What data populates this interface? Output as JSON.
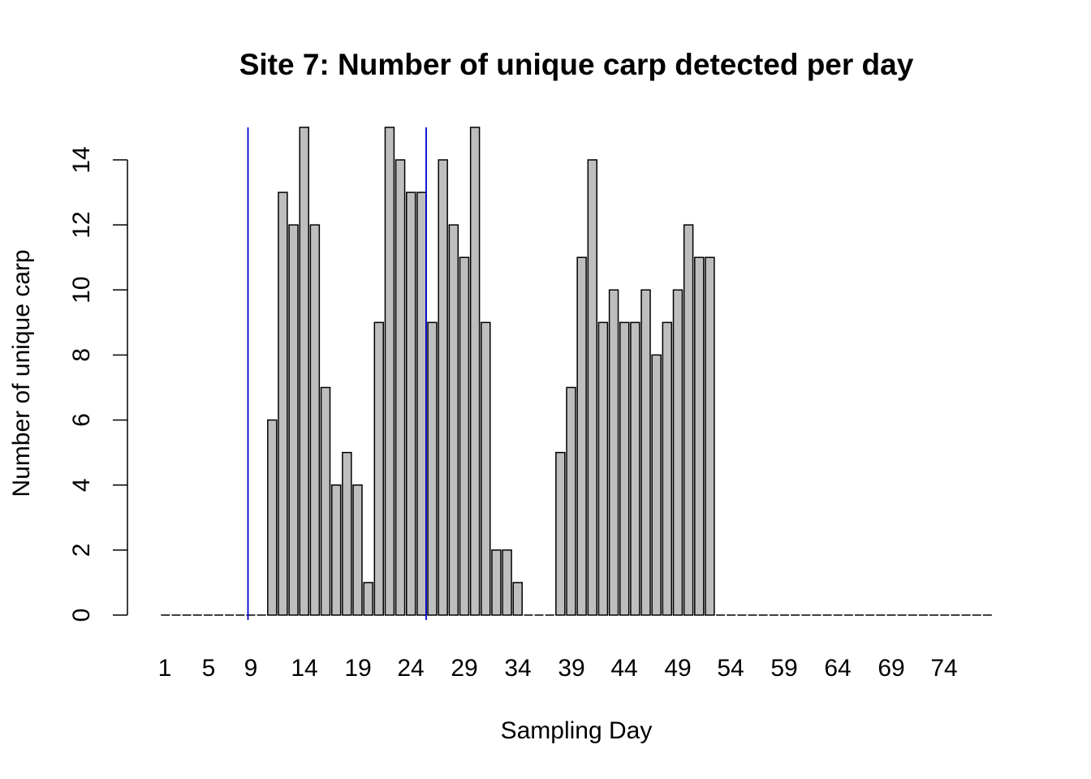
{
  "chart_data": {
    "type": "bar",
    "title": "Site 7: Number of unique carp detected per day",
    "xlabel": "Sampling Day",
    "ylabel": "Number of unique carp",
    "ylim": [
      0,
      15
    ],
    "y_ticks": [
      "0",
      "2",
      "4",
      "6",
      "8",
      "10",
      "12",
      "14"
    ],
    "x_tick_labels": [
      "1",
      "5",
      "9",
      "14",
      "19",
      "24",
      "29",
      "34",
      "39",
      "44",
      "49",
      "54",
      "59",
      "64",
      "69",
      "74"
    ],
    "categories": [
      "1",
      "2",
      "3",
      "4",
      "5",
      "6",
      "7",
      "8",
      "9",
      "10",
      "11",
      "12",
      "13",
      "14",
      "15",
      "16",
      "17",
      "18",
      "19",
      "20",
      "21",
      "22",
      "23",
      "24",
      "25",
      "26",
      "27",
      "28",
      "29",
      "30",
      "31",
      "32",
      "33",
      "34",
      "35",
      "36",
      "37",
      "38",
      "39",
      "40",
      "41",
      "42",
      "43",
      "44",
      "45",
      "46",
      "47",
      "48",
      "49",
      "50",
      "51",
      "52",
      "53",
      "54",
      "55",
      "56",
      "57",
      "58",
      "59",
      "60",
      "61",
      "62",
      "63",
      "64",
      "65",
      "66",
      "67",
      "68",
      "69",
      "70",
      "71",
      "72",
      "73",
      "74",
      "75",
      "76",
      "77",
      "78"
    ],
    "values": [
      0,
      0,
      0,
      0,
      0,
      0,
      0,
      0,
      0,
      0,
      6,
      13,
      12,
      15,
      12,
      7,
      4,
      5,
      4,
      1,
      9,
      15,
      14,
      13,
      13,
      9,
      14,
      12,
      11,
      15,
      9,
      2,
      2,
      1,
      0,
      0,
      0,
      5,
      7,
      11,
      14,
      9,
      10,
      9,
      9,
      10,
      8,
      9,
      10,
      12,
      11,
      11,
      0,
      0,
      0,
      0,
      0,
      0,
      0,
      0,
      0,
      0,
      0,
      0,
      0,
      0,
      0,
      0,
      0,
      0,
      0,
      0,
      0,
      0,
      0,
      0,
      0,
      0
    ],
    "reference_lines": [
      {
        "color": "#0000cc"
      },
      {
        "color": "#0000cc"
      }
    ],
    "bar_color": "#bebebe",
    "grid": false
  }
}
